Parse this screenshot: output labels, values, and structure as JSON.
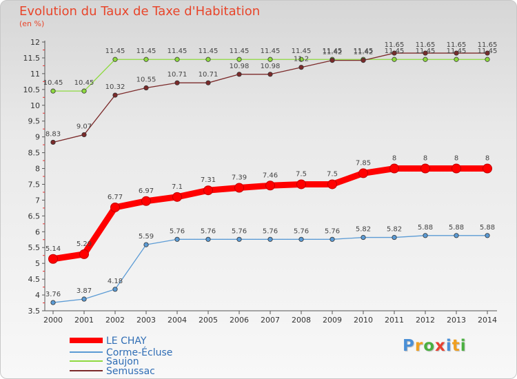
{
  "chart_data": {
    "type": "line",
    "title": "Evolution du Taux de Taxe d'Habitation",
    "subtitle": "(en %)",
    "x": [
      "2000",
      "2001",
      "2002",
      "2003",
      "2004",
      "2005",
      "2006",
      "2007",
      "2008",
      "2009",
      "2010",
      "2011",
      "2012",
      "2013",
      "2014"
    ],
    "ylim": [
      3.5,
      12
    ],
    "yticks": [
      "3.5",
      "4",
      "4.5",
      "5",
      "5.5",
      "6",
      "6.5",
      "7",
      "7.5",
      "8",
      "8.5",
      "9",
      "9.5",
      "10",
      "10.5",
      "11",
      "11.5",
      "12"
    ],
    "grid": false,
    "legend_position": "bottom-left",
    "series": [
      {
        "name": "LE CHAY",
        "color": "#ff0000",
        "values": [
          5.14,
          5.29,
          6.77,
          6.97,
          7.1,
          7.31,
          7.39,
          7.46,
          7.5,
          7.5,
          7.85,
          8,
          8,
          8,
          8
        ],
        "labels": [
          "5.14",
          "5.29",
          "6.77",
          "6.97",
          "7.1",
          "7.31",
          "7.39",
          "7.46",
          "7.5",
          "7.5",
          "7.85",
          "8",
          "8",
          "8",
          "8"
        ]
      },
      {
        "name": "Corme-Écluse",
        "color": "#5b9bd5",
        "values": [
          3.76,
          3.87,
          4.18,
          5.59,
          5.76,
          5.76,
          5.76,
          5.76,
          5.76,
          5.76,
          5.82,
          5.82,
          5.88,
          5.88,
          5.88
        ],
        "labels": [
          "3.76",
          "3.87",
          "4.18",
          "5.59",
          "5.76",
          "5.76",
          "5.76",
          "5.76",
          "5.76",
          "5.76",
          "5.82",
          "5.82",
          "5.88",
          "5.88",
          "5.88"
        ]
      },
      {
        "name": "Saujon",
        "color": "#8ed93f",
        "values": [
          10.45,
          10.45,
          11.45,
          11.45,
          11.45,
          11.45,
          11.45,
          11.45,
          11.45,
          11.45,
          11.45,
          11.45,
          11.45,
          11.45,
          11.45
        ],
        "labels": [
          "10.45",
          "10.45",
          "11.45",
          "11.45",
          "11.45",
          "11.45",
          "11.45",
          "11.45",
          "11.45",
          "11.45",
          "11.45",
          "11.45",
          "11.45",
          "11.45",
          "11.45"
        ]
      },
      {
        "name": "Semussac",
        "color": "#7b2a2a",
        "values": [
          8.83,
          9.07,
          10.32,
          10.55,
          10.71,
          10.71,
          10.98,
          10.98,
          11.2,
          11.42,
          11.42,
          11.65,
          11.65,
          11.65,
          11.65
        ],
        "labels": [
          "8.83",
          "9.07",
          "10.32",
          "10.55",
          "10.71",
          "10.71",
          "10.98",
          "10.98",
          "11.2",
          "11.42",
          "11.42",
          "11.65",
          "11.65",
          "11.65",
          "11.65"
        ]
      }
    ]
  },
  "logo": {
    "text": "Proxiti",
    "letter_colors": [
      "#4a8fd6",
      "#f0a020",
      "#4ab040",
      "#e84030",
      "#4a8fd6",
      "#f0a020",
      "#4ab040"
    ]
  }
}
